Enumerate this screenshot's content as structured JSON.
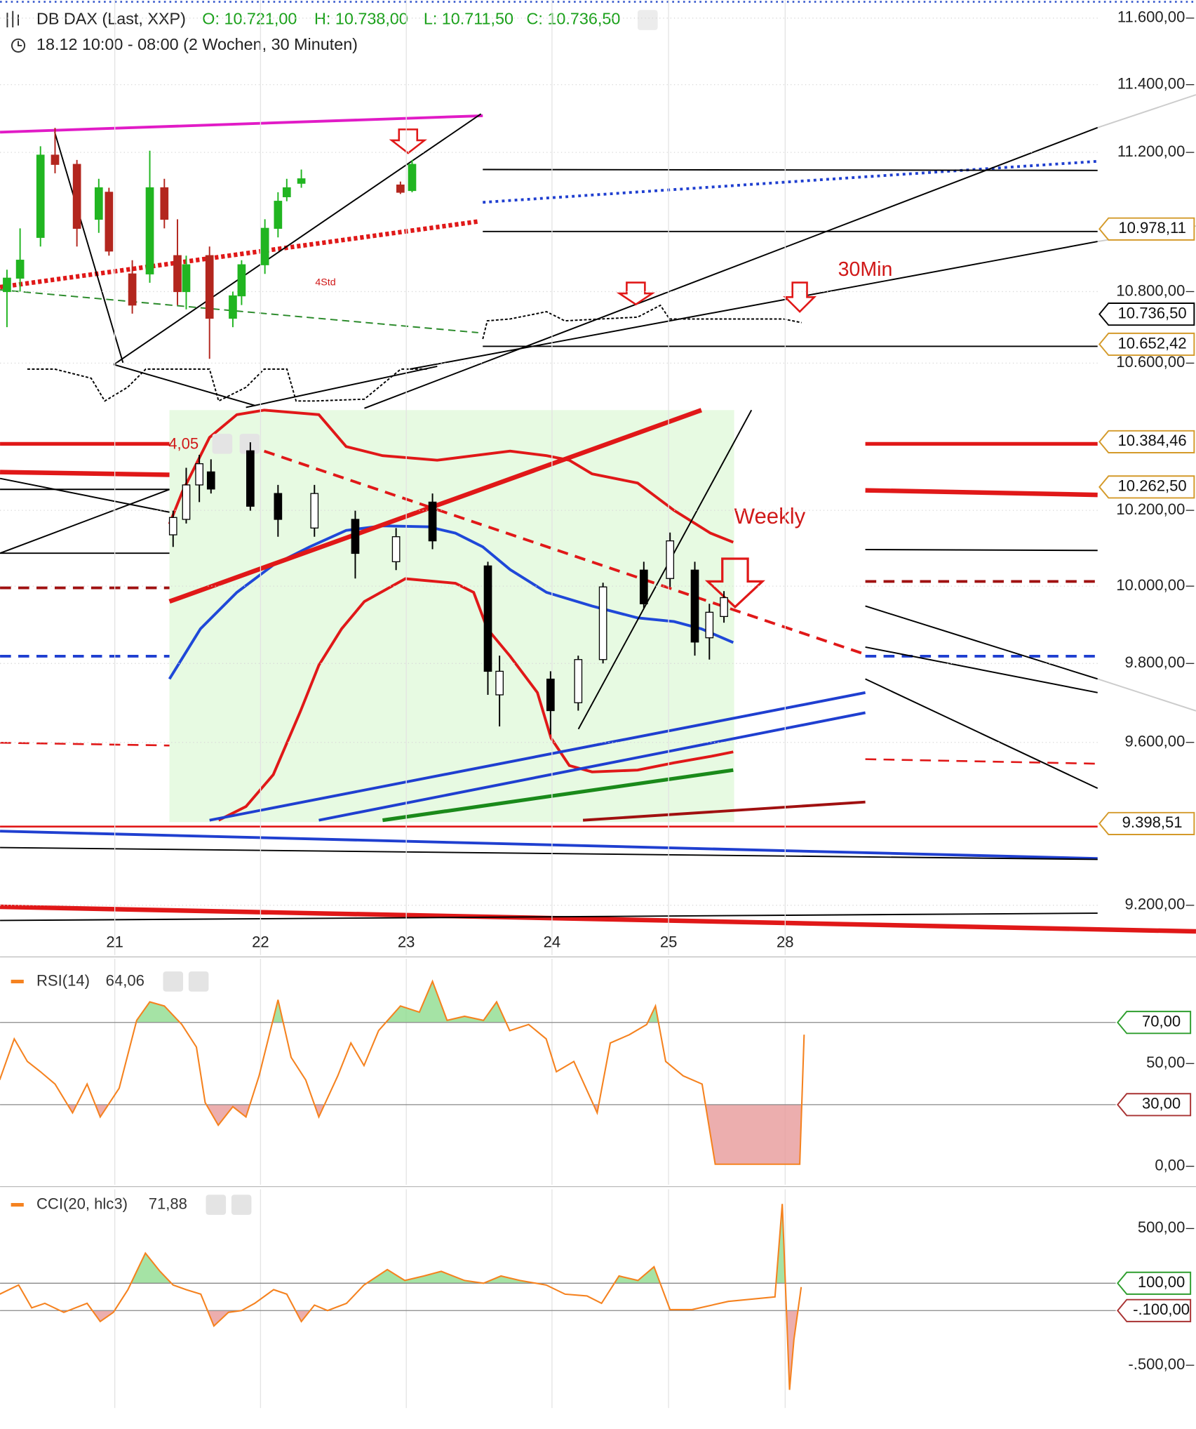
{
  "header": {
    "title": "DB DAX (Last, XXP)",
    "ohlc": [
      "O: 10.721,00",
      "H: 10.738,00",
      "L: 10.711,50",
      "C: 10.736,50"
    ],
    "range": "18.12 10:00 - 08:00 (2 Wochen, 30 Minuten)"
  },
  "annotations": [
    "4Std",
    "30Min",
    "Weekly",
    "4,05"
  ],
  "chart_data": [
    {
      "type": "candlestick",
      "scale": "log",
      "grid": true,
      "xlim": [
        -0.7875,
        6.7438
      ],
      "xticks": [
        {
          "value": 0,
          "label": "21"
        },
        {
          "value": 1,
          "label": "22"
        },
        {
          "value": 2,
          "label": "23"
        },
        {
          "value": 3,
          "label": "24"
        },
        {
          "value": 3.8,
          "label": "25"
        },
        {
          "value": 4.6,
          "label": "28"
        }
      ],
      "ylim": [
        9081,
        11655
      ],
      "yticks": [
        {
          "value": 11600,
          "label": "11.600,00"
        },
        {
          "value": 11400,
          "label": "11.400,00"
        },
        {
          "value": 11200,
          "label": "11.200,00"
        },
        {
          "value": 10800,
          "label": "10.800,00"
        },
        {
          "value": 10600,
          "label": "10.600,00"
        },
        {
          "value": 10200,
          "label": "10.200,00"
        },
        {
          "value": 10000,
          "label": "10.000,00"
        },
        {
          "value": 9800,
          "label": "9.800,00"
        },
        {
          "value": 9600,
          "label": "9.600,00"
        },
        {
          "value": 9200,
          "label": "9.200,00"
        }
      ],
      "price_labels": [
        {
          "value": 10978.11,
          "label": "10.978,11",
          "color": "#d49a2a"
        },
        {
          "value": 10736.5,
          "label": "10.736,50",
          "color": "#000000"
        },
        {
          "value": 10652.42,
          "label": "10.652,42",
          "color": "#d49a2a"
        },
        {
          "value": 10384.46,
          "label": "10.384,46",
          "color": "#d49a2a"
        },
        {
          "value": 10262.5,
          "label": "10.262,50",
          "color": "#d49a2a"
        },
        {
          "value": 9398.51,
          "label": "9.398,51",
          "color": "#d49a2a"
        }
      ],
      "candles": {
        "up_color": "#21b521",
        "down_color": "#b3261e",
        "x": [
          -0.74,
          -0.65,
          -0.51,
          -0.41,
          -0.26,
          -0.11,
          -0.04,
          0.12,
          0.24,
          0.34,
          0.43,
          0.49,
          0.65,
          0.81,
          0.87,
          1.03,
          1.12,
          1.18,
          1.28,
          1.96,
          2.04
        ],
        "open": [
          10800,
          10838,
          10954,
          11192,
          11165,
          11006,
          11084,
          10850,
          10850,
          11097,
          10902,
          10800,
          10902,
          10725,
          10788,
          10876,
          10980,
          11071,
          11110,
          11105,
          11089
        ],
        "high": [
          10862,
          10980,
          11218,
          11272,
          11178,
          11123,
          11097,
          10889,
          11205,
          11123,
          11006,
          10902,
          10928,
          10800,
          10889,
          11006,
          11084,
          11123,
          11150,
          11115,
          11178
        ],
        "low": [
          10700,
          10800,
          10928,
          11139,
          10928,
          10967,
          10902,
          10738,
          10825,
          10980,
          10762,
          10750,
          10612,
          10700,
          10762,
          10850,
          10954,
          11058,
          11097,
          11079,
          11084
        ],
        "close": [
          10838,
          10889,
          11192,
          11165,
          10980,
          11097,
          10915,
          10762,
          11097,
          11006,
          10800,
          10876,
          10725,
          10788,
          10876,
          10980,
          11058,
          11097,
          11123,
          11084,
          11165
        ]
      },
      "overlay_candles": {
        "up_color": "#ffffff",
        "down_color": "#000000",
        "outline": "#000000",
        "x": [
          0.4,
          0.49,
          0.58,
          0.66,
          0.93,
          1.12,
          1.37,
          1.65,
          1.93,
          2.18,
          2.56,
          2.64,
          2.99,
          3.18,
          3.35,
          3.63,
          3.81,
          3.98,
          4.08,
          4.18
        ],
        "open": [
          10135,
          10176,
          10268,
          10303,
          10360,
          10245,
          10153,
          10176,
          10064,
          10222,
          10053,
          9720,
          9760,
          9700,
          9810,
          10042,
          10020,
          10042,
          9866,
          9921
        ],
        "high": [
          10199,
          10314,
          10349,
          10337,
          10383,
          10268,
          10268,
          10199,
          10153,
          10245,
          10064,
          9820,
          9780,
          9820,
          10009,
          10064,
          10141,
          10064,
          9954,
          9987
        ],
        "low": [
          10103,
          10165,
          10222,
          10245,
          10199,
          10130,
          10130,
          10020,
          10042,
          10097,
          9720,
          9640,
          9620,
          9680,
          9800,
          9943,
          9998,
          9820,
          9810,
          9905
        ],
        "close": [
          10181,
          10268,
          10325,
          10257,
          10211,
          10176,
          10245,
          10086,
          10130,
          10119,
          9780,
          9780,
          9680,
          9810,
          9998,
          9954,
          10119,
          9855,
          9932,
          9970
        ]
      }
    },
    {
      "type": "line",
      "name": "RSI(14)",
      "legend_value": {
        "value": 64.06,
        "label": "64,06"
      },
      "color": "#f5821f",
      "xlim": [
        -0.7875,
        6.7438
      ],
      "ylim": [
        -9,
        101
      ],
      "yticks": [
        {
          "value": 50,
          "label": "50,00"
        },
        {
          "value": 0,
          "label": "0,00"
        }
      ],
      "levels": [
        {
          "value": 70,
          "label": "70,00",
          "color": "#2e9e2e",
          "fill": "#8fdc8f"
        },
        {
          "value": 30,
          "label": "30,00",
          "color": "#a83232",
          "fill": "#e79a9a"
        }
      ],
      "x": [
        -0.79,
        -0.69,
        -0.6,
        -0.51,
        -0.41,
        -0.29,
        -0.19,
        -0.1,
        0.03,
        0.15,
        0.24,
        0.34,
        0.46,
        0.56,
        0.62,
        0.71,
        0.81,
        0.9,
        0.99,
        1.12,
        1.21,
        1.31,
        1.4,
        1.53,
        1.62,
        1.71,
        1.81,
        1.96,
        2.09,
        2.18,
        2.28,
        2.4,
        2.53,
        2.62,
        2.71,
        2.84,
        2.96,
        3.03,
        3.15,
        3.31,
        3.4,
        3.53,
        3.65,
        3.71,
        3.78,
        3.9,
        4.03,
        4.12,
        4.7,
        4.73
      ],
      "values": [
        42,
        62,
        51,
        46,
        40,
        26,
        40,
        24,
        38,
        71,
        80,
        78,
        69,
        58,
        31,
        20,
        29,
        24,
        44,
        81,
        53,
        42,
        24,
        44,
        60,
        49,
        66,
        78,
        75,
        90,
        71,
        73,
        71,
        80,
        66,
        69,
        62,
        46,
        51,
        26,
        60,
        64,
        69,
        78,
        51,
        44,
        40,
        1,
        1,
        64.06
      ]
    },
    {
      "type": "line",
      "name": "CCI(20, hlc3)",
      "legend_value": {
        "value": 71.88,
        "label": "71,88"
      },
      "color": "#f5821f",
      "xlim": [
        -0.7875,
        6.7438
      ],
      "ylim": [
        -813,
        787
      ],
      "yticks": [
        {
          "value": 500,
          "label": "500,00"
        },
        {
          "value": -500,
          "label": "-.500,00"
        }
      ],
      "levels": [
        {
          "value": 100,
          "label": "100,00",
          "color": "#2e9e2e",
          "fill": "#8fdc8f"
        },
        {
          "value": -100,
          "label": "-.100,00",
          "color": "#a83232",
          "fill": "#e79a9a"
        }
      ],
      "x": [
        -0.79,
        -0.66,
        -0.57,
        -0.48,
        -0.35,
        -0.19,
        -0.1,
        -0.01,
        0.09,
        0.15,
        0.21,
        0.31,
        0.4,
        0.49,
        0.59,
        0.68,
        0.78,
        0.87,
        0.96,
        1.09,
        1.18,
        1.28,
        1.37,
        1.46,
        1.59,
        1.71,
        1.87,
        1.99,
        2.12,
        2.24,
        2.4,
        2.53,
        2.65,
        2.78,
        2.96,
        3.09,
        3.24,
        3.34,
        3.46,
        3.59,
        3.7,
        3.81,
        3.96,
        4.21,
        4.53,
        4.58,
        4.63,
        4.66,
        4.71
      ],
      "values": [
        20,
        87,
        -80,
        -47,
        -113,
        -47,
        -180,
        -113,
        53,
        187,
        320,
        187,
        87,
        53,
        20,
        -213,
        -113,
        -100,
        -47,
        53,
        20,
        -180,
        -60,
        -100,
        -47,
        87,
        200,
        120,
        153,
        187,
        120,
        100,
        153,
        120,
        87,
        20,
        7,
        -47,
        153,
        120,
        220,
        -93,
        -93,
        -33,
        0,
        680,
        -680,
        -313,
        71.88
      ]
    }
  ]
}
